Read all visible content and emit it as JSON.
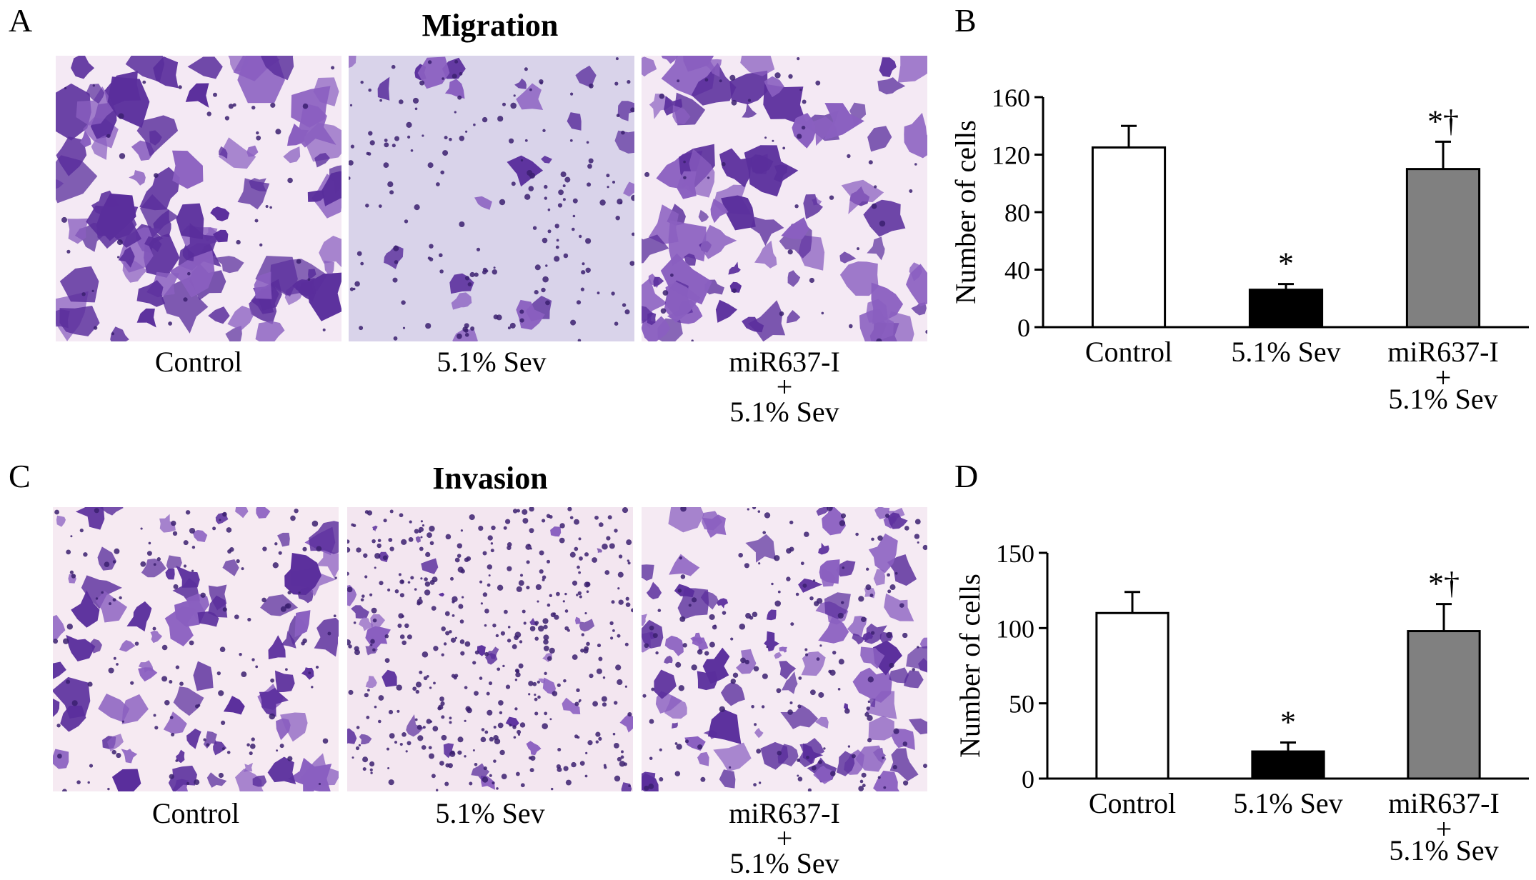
{
  "panel_letters": {
    "a": "A",
    "b": "B",
    "c": "C",
    "d": "D"
  },
  "migration": {
    "title": "Migration",
    "images": [
      {
        "label_lines": [
          "Control"
        ]
      },
      {
        "label_lines": [
          "5.1% Sev"
        ]
      },
      {
        "label_lines": [
          "miR637-I",
          "+",
          "5.1% Sev"
        ]
      }
    ]
  },
  "invasion": {
    "title": "Invasion",
    "images": [
      {
        "label_lines": [
          "Control"
        ]
      },
      {
        "label_lines": [
          "5.1% Sev"
        ]
      },
      {
        "label_lines": [
          "miR637-I",
          "+",
          "5.1% Sev"
        ]
      }
    ]
  },
  "colors": {
    "stain_dark": "#5a2e9c",
    "stain_mid": "#8a5fc0",
    "background_light": "#f4e9f4",
    "background_sev": "#d9d3ea",
    "bar_control": "#ffffff",
    "bar_sev": "#000000",
    "bar_mir": "#808080"
  },
  "chart_data": [
    {
      "type": "bar",
      "panel": "B",
      "categories": [
        "Control",
        "5.1% Sev",
        "miR637-I\n+\n5.1% Sev"
      ],
      "category_lines": [
        [
          "Control"
        ],
        [
          "5.1% Sev"
        ],
        [
          "miR637-I",
          "+",
          "5.1% Sev"
        ]
      ],
      "values": [
        125,
        26,
        110
      ],
      "error": [
        15,
        4,
        19
      ],
      "annotations": [
        "",
        "*",
        "*†"
      ],
      "ylabel": "Number of cells",
      "xlabel": "",
      "ylim": [
        0,
        160
      ],
      "yticks": [
        0,
        40,
        80,
        120,
        160
      ],
      "bar_colors": [
        "#ffffff",
        "#000000",
        "#808080"
      ],
      "grid": false
    },
    {
      "type": "bar",
      "panel": "D",
      "categories": [
        "Control",
        "5.1% Sev",
        "miR637-I\n+\n5.1% Sev"
      ],
      "category_lines": [
        [
          "Control"
        ],
        [
          "5.1% Sev"
        ],
        [
          "miR637-I",
          "+",
          "5.1% Sev"
        ]
      ],
      "values": [
        110,
        18,
        98
      ],
      "error": [
        14,
        6,
        18
      ],
      "annotations": [
        "",
        "*",
        "*†"
      ],
      "ylabel": "Number of cells",
      "xlabel": "",
      "ylim": [
        0,
        150
      ],
      "yticks": [
        0,
        50,
        100,
        150
      ],
      "bar_colors": [
        "#ffffff",
        "#000000",
        "#808080"
      ],
      "grid": false
    }
  ]
}
